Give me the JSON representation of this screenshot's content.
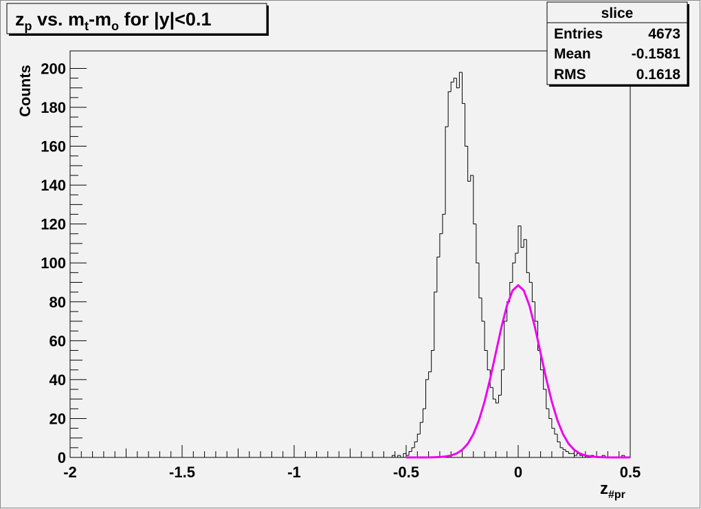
{
  "chart_data": {
    "type": "histogram",
    "title_parts": [
      {
        "text": "z"
      },
      {
        "text": "p",
        "sub": true
      },
      {
        "text": " vs. m"
      },
      {
        "text": "t",
        "sub": true
      },
      {
        "text": "-m"
      },
      {
        "text": "o",
        "sub": true
      },
      {
        "text": " for |y|<0.1"
      }
    ],
    "xlabel": "z",
    "xlabel_sub": "#pr",
    "ylabel": "Counts",
    "xlim": [
      -2,
      0.5
    ],
    "ylim": [
      0,
      209
    ],
    "xticks": [
      -2,
      -1.5,
      -1,
      -0.5,
      0,
      0.5
    ],
    "yticks": [
      0,
      20,
      40,
      60,
      80,
      100,
      120,
      140,
      160,
      180,
      200
    ],
    "color": "#000000",
    "bins": [
      -0.6,
      -0.5875,
      -0.575,
      -0.5625,
      -0.55,
      -0.5375,
      -0.525,
      -0.5125,
      -0.5,
      -0.4875,
      -0.475,
      -0.4625,
      -0.45,
      -0.4375,
      -0.425,
      -0.4125,
      -0.4,
      -0.3875,
      -0.375,
      -0.3625,
      -0.35,
      -0.3375,
      -0.325,
      -0.3125,
      -0.3,
      -0.2875,
      -0.275,
      -0.2625,
      -0.25,
      -0.2375,
      -0.225,
      -0.2125,
      -0.2,
      -0.1875,
      -0.175,
      -0.1625,
      -0.15,
      -0.1375,
      -0.125,
      -0.1125,
      -0.1,
      -0.0875,
      -0.075,
      -0.0625,
      -0.05,
      -0.0375,
      -0.025,
      -0.0125,
      0,
      0.0125,
      0.025,
      0.0375,
      0.05,
      0.0625,
      0.075,
      0.0875,
      0.1,
      0.1125,
      0.125,
      0.1375,
      0.15,
      0.1625,
      0.175,
      0.1875,
      0.2,
      0.2125,
      0.225,
      0.2375,
      0.25,
      0.2625,
      0.275,
      0.2875,
      0.3,
      0.3125,
      0.325,
      0.3375,
      0.35,
      0.3625,
      0.375,
      0.3875,
      0.4,
      0.4125,
      0.425,
      0.4375,
      0.45,
      0.4625,
      0.475,
      0.4875,
      0.5
    ],
    "values": [
      0,
      0,
      0,
      1,
      0,
      1,
      0,
      2,
      1,
      3,
      5,
      8,
      12,
      18,
      25,
      40,
      44,
      55,
      85,
      103,
      115,
      125,
      170,
      188,
      193,
      195,
      190,
      198,
      182,
      160,
      142,
      145,
      120,
      100,
      82,
      70,
      55,
      45,
      36,
      30,
      28,
      32,
      45,
      70,
      80,
      90,
      100,
      105,
      119,
      108,
      112,
      95,
      90,
      80,
      70,
      55,
      45,
      35,
      25,
      20,
      15,
      12,
      8,
      5,
      4,
      3,
      2,
      2,
      1,
      2,
      1,
      0,
      1,
      0,
      1,
      0,
      0,
      0,
      1,
      0,
      0,
      0,
      0,
      0,
      0,
      1,
      0,
      0
    ],
    "fit": {
      "color": "#ee00ee",
      "x": [
        -0.5,
        -0.475,
        -0.45,
        -0.425,
        -0.4,
        -0.375,
        -0.35,
        -0.325,
        -0.3,
        -0.275,
        -0.25,
        -0.225,
        -0.2,
        -0.175,
        -0.15,
        -0.125,
        -0.1,
        -0.075,
        -0.05,
        -0.025,
        0,
        0.025,
        0.05,
        0.075,
        0.1,
        0.125,
        0.15,
        0.175,
        0.2,
        0.225,
        0.25,
        0.275,
        0.3,
        0.325,
        0.35,
        0.375,
        0.4,
        0.425,
        0.45,
        0.475,
        0.5
      ],
      "values": [
        0,
        0,
        0,
        0,
        0,
        0.1,
        0.2,
        0.5,
        1,
        2,
        3.9,
        7,
        12,
        19.1,
        28.7,
        40.5,
        53.7,
        66.8,
        78.1,
        85.8,
        88.5,
        85.8,
        78.1,
        66.8,
        53.7,
        40.5,
        28.7,
        19.1,
        12,
        7,
        3.9,
        2,
        1,
        0.5,
        0.2,
        0.1,
        0,
        0,
        0,
        0,
        0
      ]
    },
    "stats": {
      "title": "slice",
      "rows": [
        [
          "Entries",
          4673
        ],
        [
          "Mean",
          -0.1581
        ],
        [
          "RMS",
          0.1618
        ]
      ]
    }
  }
}
